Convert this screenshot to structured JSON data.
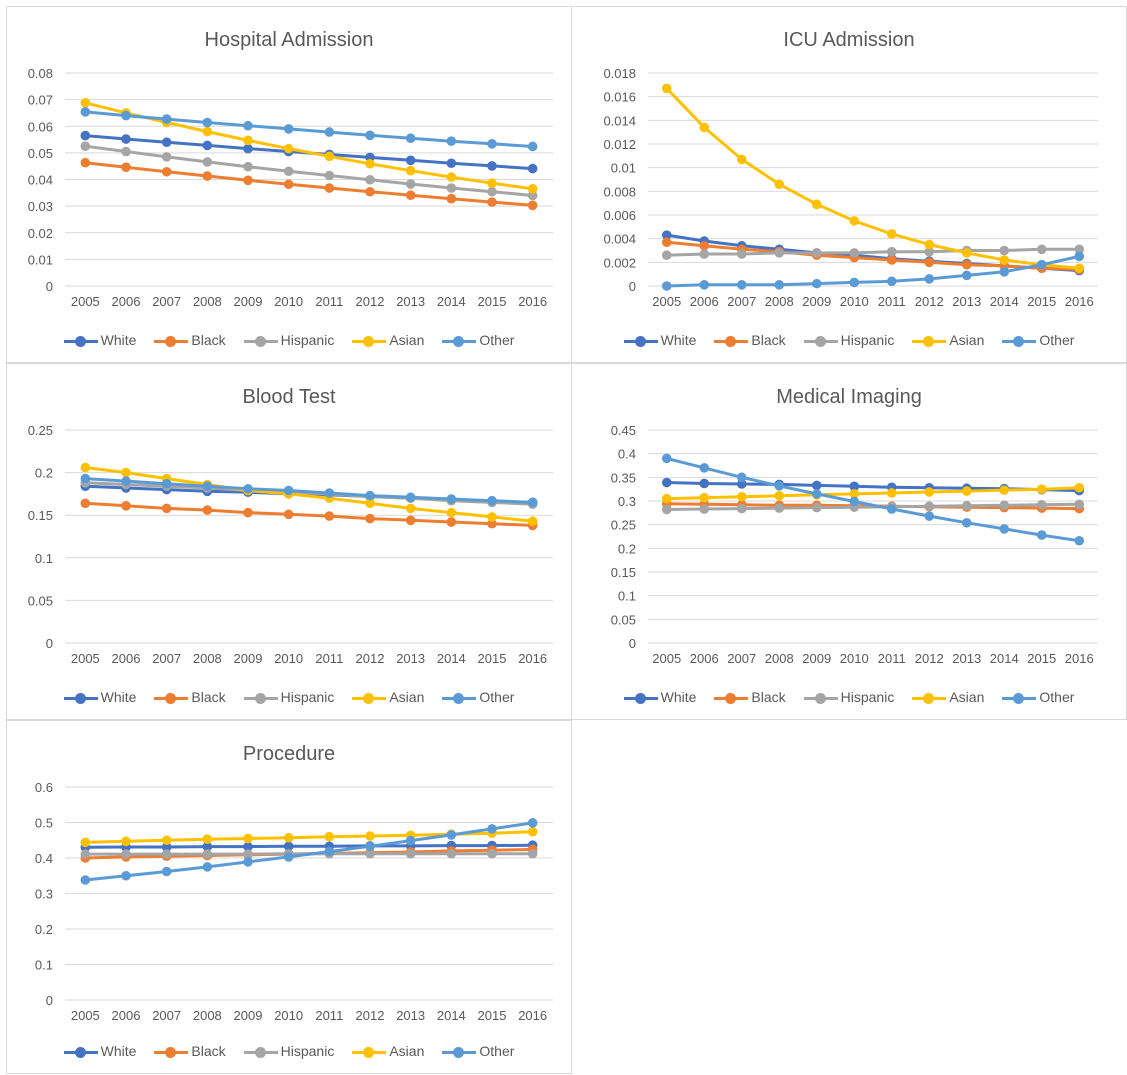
{
  "colors": {
    "White": "#4472c4",
    "Black": "#ed7d31",
    "Hispanic": "#a5a5a5",
    "Asian": "#ffc000",
    "Other": "#5b9bd5"
  },
  "chart_data": [
    {
      "type": "line",
      "title": "Hospital Admission",
      "x": [
        "2005",
        "2006",
        "2007",
        "2008",
        "2009",
        "2010",
        "2011",
        "2012",
        "2013",
        "2014",
        "2015",
        "2016"
      ],
      "ylim": [
        0,
        0.08
      ],
      "yticks": [
        "0",
        "0.01",
        "0.02",
        "0.03",
        "0.04",
        "0.05",
        "0.06",
        "0.07",
        "0.08"
      ],
      "grid": true,
      "legend": "bottom",
      "series": [
        {
          "name": "White",
          "values": [
            0.0565,
            0.0552,
            0.054,
            0.0528,
            0.0516,
            0.0505,
            0.0494,
            0.0483,
            0.0472,
            0.0461,
            0.0451,
            0.0441
          ]
        },
        {
          "name": "Black",
          "values": [
            0.0463,
            0.0446,
            0.0429,
            0.0413,
            0.0397,
            0.0382,
            0.0368,
            0.0354,
            0.0341,
            0.0328,
            0.0315,
            0.0303
          ]
        },
        {
          "name": "Hispanic",
          "values": [
            0.0525,
            0.0505,
            0.0485,
            0.0466,
            0.0448,
            0.0431,
            0.0415,
            0.0399,
            0.0383,
            0.0368,
            0.0354,
            0.034
          ]
        },
        {
          "name": "Asian",
          "values": [
            0.0688,
            0.065,
            0.0614,
            0.058,
            0.0547,
            0.0516,
            0.0487,
            0.0459,
            0.0433,
            0.0409,
            0.0386,
            0.0365
          ]
        },
        {
          "name": "Other",
          "values": [
            0.0654,
            0.064,
            0.0627,
            0.0614,
            0.0602,
            0.059,
            0.0578,
            0.0566,
            0.0555,
            0.0544,
            0.0534,
            0.0524
          ]
        }
      ]
    },
    {
      "type": "line",
      "title": "ICU Admission",
      "x": [
        "2005",
        "2006",
        "2007",
        "2008",
        "2009",
        "2010",
        "2011",
        "2012",
        "2013",
        "2014",
        "2015",
        "2016"
      ],
      "ylim": [
        0,
        0.018
      ],
      "yticks": [
        "0",
        "0.002",
        "0.004",
        "0.006",
        "0.008",
        "0.01",
        "0.012",
        "0.014",
        "0.016",
        "0.018"
      ],
      "grid": true,
      "legend": "bottom",
      "series": [
        {
          "name": "White",
          "values": [
            0.0043,
            0.0038,
            0.0034,
            0.0031,
            0.0028,
            0.0026,
            0.0023,
            0.0021,
            0.0019,
            0.0017,
            0.0015,
            0.0013
          ]
        },
        {
          "name": "Black",
          "values": [
            0.0037,
            0.0034,
            0.0031,
            0.0029,
            0.0026,
            0.0024,
            0.0022,
            0.002,
            0.0018,
            0.0017,
            0.0015,
            0.0014
          ]
        },
        {
          "name": "Hispanic",
          "values": [
            0.0026,
            0.0027,
            0.0027,
            0.0028,
            0.0028,
            0.0028,
            0.0029,
            0.0029,
            0.003,
            0.003,
            0.0031,
            0.0031
          ]
        },
        {
          "name": "Asian",
          "values": [
            0.0167,
            0.0134,
            0.0107,
            0.0086,
            0.0069,
            0.0055,
            0.0044,
            0.0035,
            0.0028,
            0.0022,
            0.0018,
            0.0015
          ]
        },
        {
          "name": "Other",
          "values": [
            0.0,
            0.0001,
            0.0001,
            0.0001,
            0.0002,
            0.0003,
            0.0004,
            0.0006,
            0.0009,
            0.0012,
            0.0018,
            0.0025
          ]
        }
      ]
    },
    {
      "type": "line",
      "title": "Blood Test",
      "x": [
        "2005",
        "2006",
        "2007",
        "2008",
        "2009",
        "2010",
        "2011",
        "2012",
        "2013",
        "2014",
        "2015",
        "2016"
      ],
      "ylim": [
        0,
        0.25
      ],
      "yticks": [
        "0",
        "0.05",
        "0.1",
        "0.15",
        "0.2",
        "0.25"
      ],
      "grid": true,
      "legend": "bottom",
      "series": [
        {
          "name": "White",
          "values": [
            0.184,
            0.182,
            0.18,
            0.178,
            0.177,
            0.175,
            0.174,
            0.172,
            0.17,
            0.168,
            0.166,
            0.165
          ]
        },
        {
          "name": "Black",
          "values": [
            0.164,
            0.161,
            0.158,
            0.156,
            0.153,
            0.151,
            0.149,
            0.146,
            0.144,
            0.142,
            0.14,
            0.138
          ]
        },
        {
          "name": "Hispanic",
          "values": [
            0.188,
            0.186,
            0.184,
            0.182,
            0.179,
            0.177,
            0.175,
            0.172,
            0.17,
            0.167,
            0.165,
            0.163
          ]
        },
        {
          "name": "Asian",
          "values": [
            0.206,
            0.2,
            0.193,
            0.186,
            0.179,
            0.175,
            0.17,
            0.164,
            0.158,
            0.153,
            0.148,
            0.143
          ]
        },
        {
          "name": "Other",
          "values": [
            0.193,
            0.19,
            0.187,
            0.184,
            0.181,
            0.179,
            0.176,
            0.173,
            0.171,
            0.169,
            0.167,
            0.165
          ]
        }
      ]
    },
    {
      "type": "line",
      "title": "Medical Imaging",
      "x": [
        "2005",
        "2006",
        "2007",
        "2008",
        "2009",
        "2010",
        "2011",
        "2012",
        "2013",
        "2014",
        "2015",
        "2016"
      ],
      "ylim": [
        0,
        0.45
      ],
      "yticks": [
        "0",
        "0.05",
        "0.1",
        "0.15",
        "0.2",
        "0.25",
        "0.3",
        "0.35",
        "0.4",
        "0.45"
      ],
      "grid": true,
      "legend": "bottom",
      "series": [
        {
          "name": "White",
          "values": [
            0.339,
            0.337,
            0.336,
            0.335,
            0.333,
            0.331,
            0.329,
            0.328,
            0.327,
            0.326,
            0.324,
            0.322
          ]
        },
        {
          "name": "Black",
          "values": [
            0.294,
            0.293,
            0.292,
            0.291,
            0.291,
            0.29,
            0.289,
            0.288,
            0.287,
            0.286,
            0.285,
            0.284
          ]
        },
        {
          "name": "Hispanic",
          "values": [
            0.282,
            0.283,
            0.284,
            0.285,
            0.286,
            0.287,
            0.288,
            0.289,
            0.29,
            0.291,
            0.292,
            0.293
          ]
        },
        {
          "name": "Asian",
          "values": [
            0.305,
            0.307,
            0.309,
            0.311,
            0.313,
            0.315,
            0.317,
            0.319,
            0.321,
            0.323,
            0.325,
            0.328
          ]
        },
        {
          "name": "Other",
          "values": [
            0.39,
            0.37,
            0.35,
            0.332,
            0.315,
            0.299,
            0.283,
            0.268,
            0.254,
            0.241,
            0.228,
            0.216
          ]
        }
      ]
    },
    {
      "type": "line",
      "title": "Procedure",
      "x": [
        "2005",
        "2006",
        "2007",
        "2008",
        "2009",
        "2010",
        "2011",
        "2012",
        "2013",
        "2014",
        "2015",
        "2016"
      ],
      "ylim": [
        0,
        0.6
      ],
      "yticks": [
        "0",
        "0.1",
        "0.2",
        "0.3",
        "0.4",
        "0.5",
        "0.6"
      ],
      "grid": true,
      "legend": "bottom",
      "series": [
        {
          "name": "White",
          "values": [
            0.43,
            0.431,
            0.431,
            0.432,
            0.432,
            0.433,
            0.433,
            0.434,
            0.434,
            0.435,
            0.435,
            0.436
          ]
        },
        {
          "name": "Black",
          "values": [
            0.4,
            0.403,
            0.405,
            0.407,
            0.409,
            0.411,
            0.413,
            0.415,
            0.417,
            0.42,
            0.422,
            0.424
          ]
        },
        {
          "name": "Hispanic",
          "values": [
            0.411,
            0.411,
            0.411,
            0.411,
            0.411,
            0.412,
            0.412,
            0.412,
            0.412,
            0.412,
            0.412,
            0.412
          ]
        },
        {
          "name": "Asian",
          "values": [
            0.444,
            0.447,
            0.45,
            0.453,
            0.455,
            0.457,
            0.46,
            0.462,
            0.464,
            0.467,
            0.47,
            0.474
          ]
        },
        {
          "name": "Other",
          "values": [
            0.338,
            0.35,
            0.362,
            0.375,
            0.389,
            0.403,
            0.418,
            0.433,
            0.449,
            0.465,
            0.482,
            0.499
          ]
        }
      ]
    }
  ]
}
